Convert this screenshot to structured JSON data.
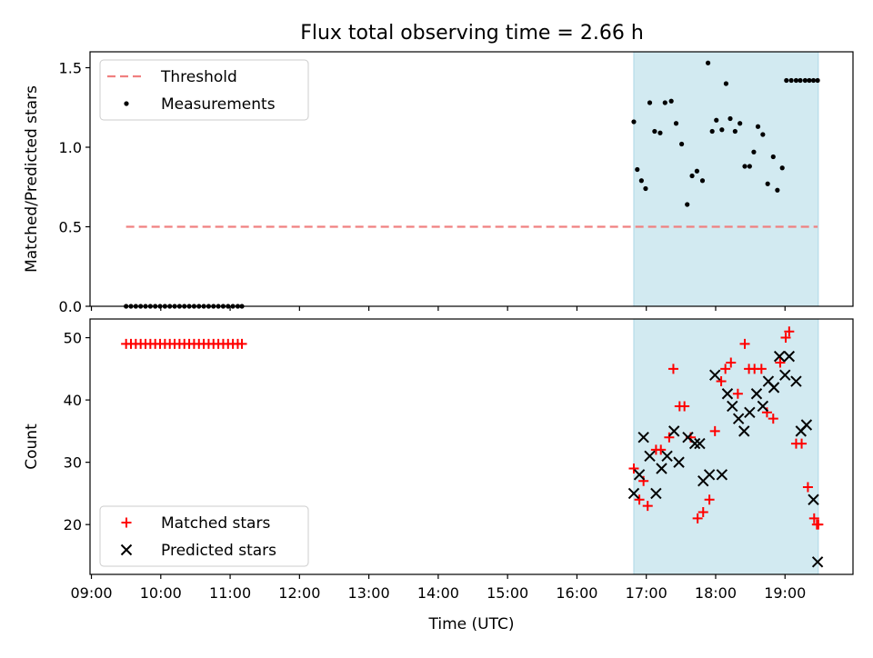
{
  "title": "Flux total observing time = 2.66 h",
  "colors": {
    "threshold": "#f08080",
    "shade": "#add8e6",
    "measurement": "#000000",
    "matched": "#ff0000",
    "predicted": "#000000"
  },
  "chart_data": [
    {
      "type": "scatter",
      "ylabel": "Matched/Predicted stars",
      "ylim": [
        0,
        1.6
      ],
      "yticks": [
        0.0,
        0.5,
        1.0,
        1.5
      ],
      "ytick_labels": [
        "0.0",
        "0.5",
        "1.0",
        "1.5"
      ],
      "legend": {
        "placement": "top-left",
        "entries": [
          "Threshold",
          "Measurements"
        ]
      },
      "shaded_span": {
        "start_hours": 16.82,
        "end_hours": 19.48
      },
      "threshold": {
        "name": "Threshold",
        "value": 0.5,
        "x_range_hours": [
          9.5,
          19.47
        ]
      },
      "series": [
        {
          "name": "Measurements",
          "marker": "dot",
          "x_hours": [
            9.5,
            9.57,
            9.64,
            9.71,
            9.78,
            9.85,
            9.92,
            9.99,
            10.06,
            10.13,
            10.2,
            10.27,
            10.34,
            10.41,
            10.48,
            10.55,
            10.62,
            10.69,
            10.76,
            10.83,
            10.9,
            10.97,
            11.04,
            11.11,
            11.17,
            16.82,
            16.87,
            16.93,
            16.99,
            17.05,
            17.12,
            17.2,
            17.27,
            17.36,
            17.43,
            17.51,
            17.59,
            17.66,
            17.73,
            17.81,
            17.89,
            17.95,
            18.01,
            18.09,
            18.15,
            18.21,
            18.28,
            18.35,
            18.42,
            18.49,
            18.55,
            18.61,
            18.68,
            18.75,
            18.83,
            18.89,
            18.96,
            19.02,
            19.09,
            19.16,
            19.22,
            19.29,
            19.35,
            19.41,
            19.47
          ],
          "y": [
            0,
            0,
            0,
            0,
            0,
            0,
            0,
            0,
            0,
            0,
            0,
            0,
            0,
            0,
            0,
            0,
            0,
            0,
            0,
            0,
            0,
            0,
            0,
            0,
            0,
            1.16,
            0.86,
            0.79,
            0.74,
            1.28,
            1.1,
            1.09,
            1.28,
            1.29,
            1.15,
            1.02,
            0.64,
            0.82,
            0.85,
            0.79,
            1.53,
            1.1,
            1.17,
            1.11,
            1.4,
            1.18,
            1.1,
            1.15,
            0.88,
            0.88,
            0.97,
            1.13,
            1.08,
            0.77,
            0.94,
            0.73,
            0.87,
            1.42,
            1.42,
            1.42,
            1.42,
            1.42,
            1.42,
            1.42,
            1.42
          ]
        }
      ]
    },
    {
      "type": "scatter",
      "xlabel": "Time (UTC)",
      "ylabel": "Count",
      "ylim": [
        12,
        53
      ],
      "yticks": [
        20,
        30,
        40,
        50
      ],
      "ytick_labels": [
        "20",
        "30",
        "40",
        "50"
      ],
      "xlim_hours": [
        8.98,
        19.98
      ],
      "xticks_hours": [
        9,
        10,
        11,
        12,
        13,
        14,
        15,
        16,
        17,
        18,
        19
      ],
      "xtick_labels": [
        "09:00",
        "10:00",
        "11:00",
        "12:00",
        "13:00",
        "14:00",
        "15:00",
        "16:00",
        "17:00",
        "18:00",
        "19:00"
      ],
      "legend": {
        "placement": "bottom-left",
        "entries": [
          "Matched stars",
          "Predicted stars"
        ]
      },
      "shaded_span": {
        "start_hours": 16.82,
        "end_hours": 19.48
      },
      "series": [
        {
          "name": "Matched stars",
          "marker": "plus",
          "x_hours": [
            9.5,
            9.57,
            9.64,
            9.71,
            9.78,
            9.85,
            9.92,
            9.99,
            10.06,
            10.13,
            10.2,
            10.27,
            10.34,
            10.41,
            10.48,
            10.55,
            10.62,
            10.69,
            10.76,
            10.83,
            10.9,
            10.97,
            11.04,
            11.11,
            11.17,
            16.82,
            16.9,
            16.96,
            17.02,
            17.14,
            17.21,
            17.33,
            17.39,
            17.48,
            17.55,
            17.64,
            17.74,
            17.82,
            17.91,
            17.99,
            18.08,
            18.14,
            18.22,
            18.32,
            18.42,
            18.48,
            18.56,
            18.66,
            18.74,
            18.83,
            18.93,
            19.01,
            19.06,
            19.16,
            19.24,
            19.33,
            19.42,
            19.46,
            19.48
          ],
          "y": [
            49,
            49,
            49,
            49,
            49,
            49,
            49,
            49,
            49,
            49,
            49,
            49,
            49,
            49,
            49,
            49,
            49,
            49,
            49,
            49,
            49,
            49,
            49,
            49,
            49,
            29,
            24,
            27,
            23,
            32,
            32,
            34,
            45,
            39,
            39,
            34,
            21,
            22,
            24,
            35,
            43,
            45,
            46,
            41,
            49,
            45,
            45,
            45,
            38,
            37,
            46,
            50,
            51,
            33,
            33,
            26,
            21,
            20,
            20
          ]
        },
        {
          "name": "Predicted stars",
          "marker": "x",
          "x_hours": [
            16.82,
            16.9,
            16.96,
            17.05,
            17.14,
            17.22,
            17.3,
            17.4,
            17.47,
            17.6,
            17.7,
            17.77,
            17.82,
            17.91,
            17.99,
            18.09,
            18.17,
            18.24,
            18.33,
            18.41,
            18.49,
            18.59,
            18.68,
            18.76,
            18.84,
            18.92,
            19,
            19.06,
            19.16,
            19.23,
            19.31,
            19.41,
            19.47
          ],
          "y": [
            25,
            28,
            34,
            31,
            25,
            29,
            31,
            35,
            30,
            34,
            33,
            33,
            27,
            28,
            44,
            28,
            41,
            39,
            37,
            35,
            38,
            41,
            39,
            43,
            42,
            47,
            44,
            47,
            43,
            35,
            36,
            24,
            14
          ]
        }
      ]
    }
  ]
}
